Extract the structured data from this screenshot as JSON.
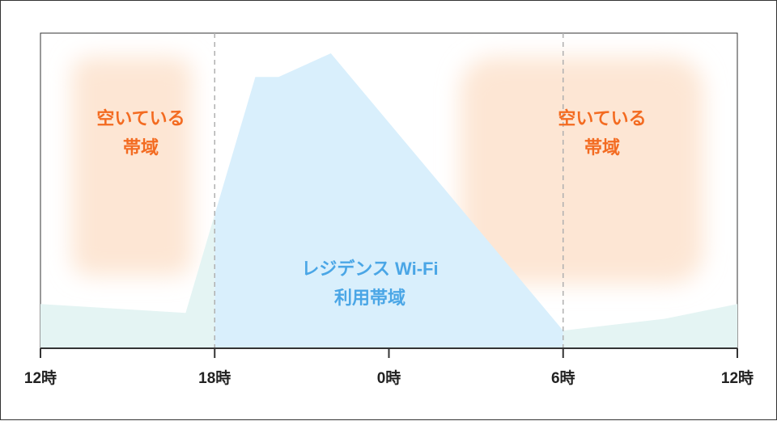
{
  "chart_data": {
    "type": "area",
    "x_categories": [
      "12時",
      "18時",
      "0時",
      "6時",
      "12時"
    ],
    "series": [
      {
        "values": [
          [
            0,
            0.15
          ],
          [
            5,
            0.12
          ],
          [
            7.4,
            0.92
          ],
          [
            8.2,
            0.92
          ],
          [
            10,
            1.0
          ],
          [
            18,
            0.06
          ],
          [
            21.5,
            0.1
          ],
          [
            24,
            0.15
          ]
        ]
      }
    ],
    "xlim": [
      0,
      24
    ],
    "ylim": [
      0,
      1.0
    ],
    "grid": "vertical dashed at 18時 and 6時",
    "annotations": [
      {
        "lines": [
          "空いている",
          "帯域"
        ],
        "color": "#f36b21",
        "region": "left"
      },
      {
        "lines": [
          "空いている",
          "帯域"
        ],
        "color": "#f36b21",
        "region": "right"
      },
      {
        "lines": [
          "レジデンス Wi-Fi",
          "利用帯域"
        ],
        "color": "#4aa6e6",
        "region": "center"
      }
    ],
    "colors": {
      "residence_fill": "#d9effc",
      "offpeak_fill": "#e4f4f3",
      "free_band": "#fde6d4",
      "axis": "#333333",
      "grid": "#b0b0b0"
    }
  }
}
